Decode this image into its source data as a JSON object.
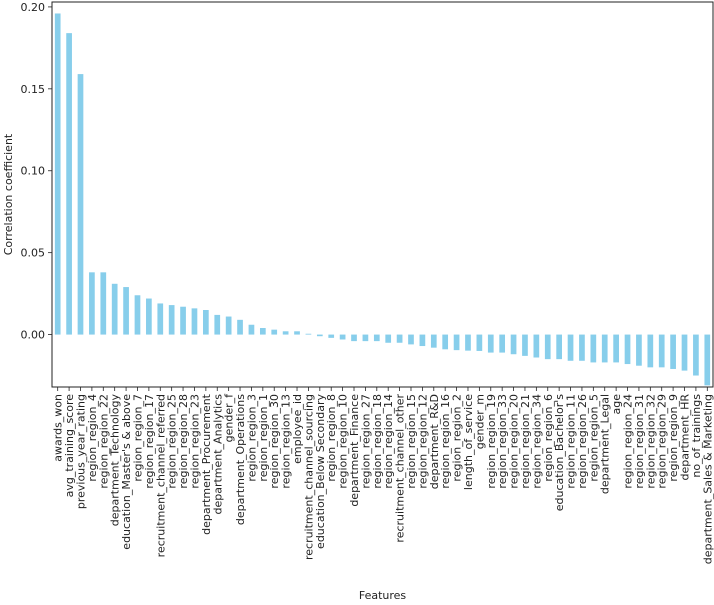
{
  "chart_data": {
    "type": "bar",
    "xlabel": "Features",
    "ylabel": "Correlation coefficient",
    "ylim": [
      -0.032,
      0.203
    ],
    "yticks": [
      0.0,
      0.05,
      0.1,
      0.15,
      0.2
    ],
    "ytick_labels": [
      "0.00",
      "0.05",
      "0.10",
      "0.15",
      "0.20"
    ],
    "grid": false,
    "bar_color": "#87CEEB",
    "categories": [
      "awards_won",
      "avg_training_score",
      "previous_year_rating",
      "region_region_4",
      "region_region_22",
      "department_Technology",
      "education_Master's & above",
      "region_region_7",
      "region_region_17",
      "recruitment_channel_referred",
      "region_region_25",
      "region_region_28",
      "region_region_23",
      "department_Procurement",
      "department_Analytics",
      "gender_f",
      "department_Operations",
      "region_region_3",
      "region_region_1",
      "region_region_30",
      "region_region_13",
      "employee_id",
      "recruitment_channel_sourcing",
      "education_Below Secondary",
      "region_region_8",
      "region_region_10",
      "department_Finance",
      "region_region_27",
      "region_region_18",
      "region_region_14",
      "recruitment_channel_other",
      "region_region_15",
      "region_region_12",
      "department_R&D",
      "region_region_16",
      "region_region_2",
      "length_of_service",
      "gender_m",
      "region_region_19",
      "region_region_33",
      "region_region_20",
      "region_region_21",
      "region_region_34",
      "region_region_6",
      "education_Bachelor's",
      "region_region_11",
      "region_region_26",
      "region_region_5",
      "department_Legal",
      "age",
      "region_region_24",
      "region_region_31",
      "region_region_32",
      "region_region_29",
      "region_region_9",
      "department_HR",
      "no_of_trainings",
      "department_Sales & Marketing"
    ],
    "values": [
      0.196,
      0.184,
      0.159,
      0.038,
      0.038,
      0.031,
      0.029,
      0.024,
      0.022,
      0.019,
      0.018,
      0.017,
      0.016,
      0.015,
      0.012,
      0.011,
      0.009,
      0.006,
      0.004,
      0.003,
      0.002,
      0.002,
      0.0005,
      -0.001,
      -0.002,
      -0.003,
      -0.004,
      -0.004,
      -0.004,
      -0.005,
      -0.005,
      -0.006,
      -0.007,
      -0.008,
      -0.009,
      -0.0095,
      -0.0098,
      -0.01,
      -0.011,
      -0.011,
      -0.012,
      -0.013,
      -0.014,
      -0.015,
      -0.015,
      -0.016,
      -0.016,
      -0.017,
      -0.017,
      -0.017,
      -0.018,
      -0.019,
      -0.02,
      -0.02,
      -0.021,
      -0.022,
      -0.025,
      -0.031
    ]
  }
}
